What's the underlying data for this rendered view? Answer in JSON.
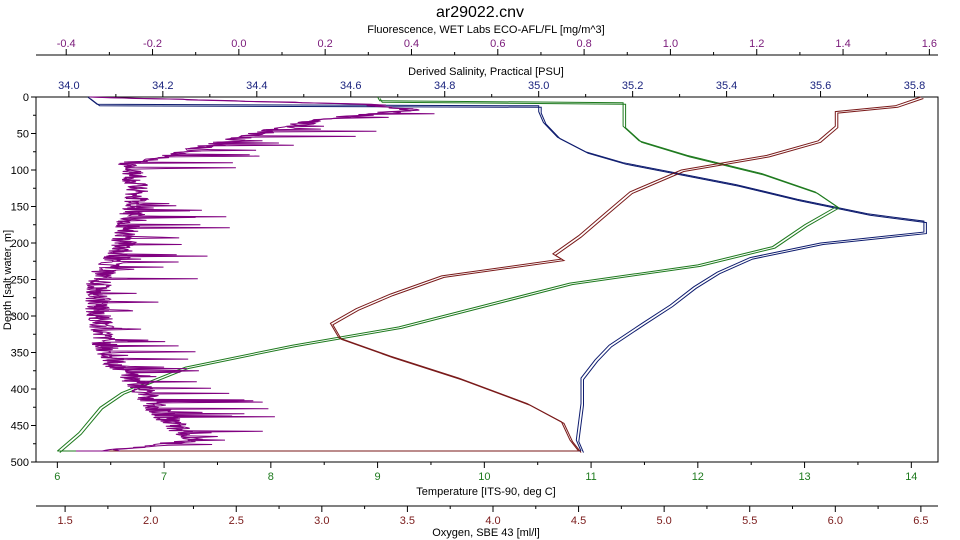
{
  "chart_data": {
    "type": "line",
    "title": "ar29022.cnv",
    "grid": false,
    "legend": "none",
    "y_axis": {
      "label": "Depth [salt water, m]",
      "range": [
        0,
        500
      ],
      "inverted": true,
      "ticks": [
        "0",
        "50",
        "100",
        "150",
        "200",
        "250",
        "300",
        "350",
        "400",
        "450",
        "500"
      ]
    },
    "axes": {
      "fluorescence": {
        "label": "Fluorescence, WET Labs ECO-AFL/FL [mg/m^3]",
        "position": "top-outer",
        "range": [
          -0.47,
          1.62
        ],
        "ticks": [
          "-0.4",
          "-0.2",
          "0.0",
          "0.2",
          "0.4",
          "0.6",
          "0.8",
          "1.0",
          "1.2",
          "1.4",
          "1.6"
        ],
        "color": "#7a1a7a"
      },
      "salinity": {
        "label": "Derived Salinity, Practical [PSU]",
        "position": "top-inner",
        "range": [
          33.93,
          35.85
        ],
        "ticks": [
          "34.0",
          "34.2",
          "34.4",
          "34.6",
          "34.8",
          "35.0",
          "35.2",
          "35.4",
          "35.6",
          "35.8"
        ],
        "color": "#1a237e"
      },
      "temperature": {
        "label": "Temperature [ITS-90, deg C]",
        "position": "bottom-inner",
        "range": [
          5.8,
          14.25
        ],
        "ticks": [
          "6",
          "7",
          "8",
          "9",
          "10",
          "11",
          "12",
          "13",
          "14"
        ],
        "color": "#1e7a1e"
      },
      "oxygen": {
        "label": "Oxygen, SBE 43 [ml/l]",
        "position": "bottom-outer",
        "range": [
          1.33,
          6.6
        ],
        "ticks": [
          "1.5",
          "2.0",
          "2.5",
          "3.0",
          "3.5",
          "4.0",
          "4.5",
          "5.0",
          "5.5",
          "6.0",
          "6.5"
        ],
        "color": "#7a1a1a"
      }
    },
    "series": [
      {
        "axis": "salinity",
        "color": "#0d1b6e",
        "points": [
          [
            34.04,
            0
          ],
          [
            34.06,
            10
          ],
          [
            35.0,
            12
          ],
          [
            35.0,
            20
          ],
          [
            35.01,
            35
          ],
          [
            35.04,
            55
          ],
          [
            35.1,
            75
          ],
          [
            35.18,
            90
          ],
          [
            35.3,
            105
          ],
          [
            35.42,
            120
          ],
          [
            35.55,
            140
          ],
          [
            35.7,
            160
          ],
          [
            35.82,
            170
          ],
          [
            35.82,
            185
          ],
          [
            35.6,
            200
          ],
          [
            35.45,
            220
          ],
          [
            35.38,
            240
          ],
          [
            35.33,
            260
          ],
          [
            35.28,
            285
          ],
          [
            35.22,
            310
          ],
          [
            35.15,
            340
          ],
          [
            35.12,
            360
          ],
          [
            35.09,
            385
          ],
          [
            35.09,
            420
          ],
          [
            35.08,
            470
          ],
          [
            35.09,
            485
          ]
        ]
      },
      {
        "axis": "temperature",
        "color": "#1e7a1e",
        "points": [
          [
            9.0,
            0
          ],
          [
            9.02,
            5
          ],
          [
            11.3,
            8
          ],
          [
            11.3,
            20
          ],
          [
            11.3,
            40
          ],
          [
            11.45,
            60
          ],
          [
            11.9,
            80
          ],
          [
            12.6,
            105
          ],
          [
            13.1,
            130
          ],
          [
            13.3,
            150
          ],
          [
            13.0,
            175
          ],
          [
            12.7,
            205
          ],
          [
            12.0,
            230
          ],
          [
            10.8,
            255
          ],
          [
            10.0,
            285
          ],
          [
            9.2,
            315
          ],
          [
            8.2,
            340
          ],
          [
            7.2,
            370
          ],
          [
            6.6,
            405
          ],
          [
            6.4,
            425
          ],
          [
            6.2,
            460
          ],
          [
            6.0,
            485
          ]
        ]
      },
      {
        "axis": "oxygen",
        "color": "#7a1a1a",
        "points": [
          [
            6.5,
            0
          ],
          [
            6.35,
            12
          ],
          [
            6.0,
            20
          ],
          [
            6.0,
            40
          ],
          [
            5.9,
            60
          ],
          [
            5.6,
            80
          ],
          [
            5.1,
            100
          ],
          [
            4.8,
            130
          ],
          [
            4.65,
            160
          ],
          [
            4.5,
            190
          ],
          [
            4.35,
            215
          ],
          [
            4.4,
            222
          ],
          [
            3.7,
            245
          ],
          [
            3.4,
            270
          ],
          [
            3.2,
            290
          ],
          [
            3.05,
            310
          ],
          [
            3.1,
            330
          ],
          [
            3.4,
            355
          ],
          [
            3.8,
            385
          ],
          [
            4.2,
            420
          ],
          [
            4.4,
            445
          ],
          [
            4.45,
            470
          ],
          [
            4.5,
            485
          ]
        ]
      },
      {
        "axis": "fluorescence",
        "color": "#800080",
        "noisy": true,
        "points": [
          [
            -0.35,
            0
          ],
          [
            0.3,
            10
          ],
          [
            0.4,
            18
          ],
          [
            0.2,
            30
          ],
          [
            0.05,
            50
          ],
          [
            -0.12,
            75
          ],
          [
            -0.25,
            90
          ],
          [
            -0.24,
            120
          ],
          [
            -0.24,
            150
          ],
          [
            -0.26,
            180
          ],
          [
            -0.27,
            210
          ],
          [
            -0.32,
            245
          ],
          [
            -0.33,
            275
          ],
          [
            -0.32,
            310
          ],
          [
            -0.31,
            340
          ],
          [
            -0.28,
            370
          ],
          [
            -0.23,
            395
          ],
          [
            -0.2,
            420
          ],
          [
            -0.15,
            450
          ],
          [
            -0.1,
            470
          ],
          [
            -0.3,
            485
          ]
        ]
      }
    ]
  }
}
